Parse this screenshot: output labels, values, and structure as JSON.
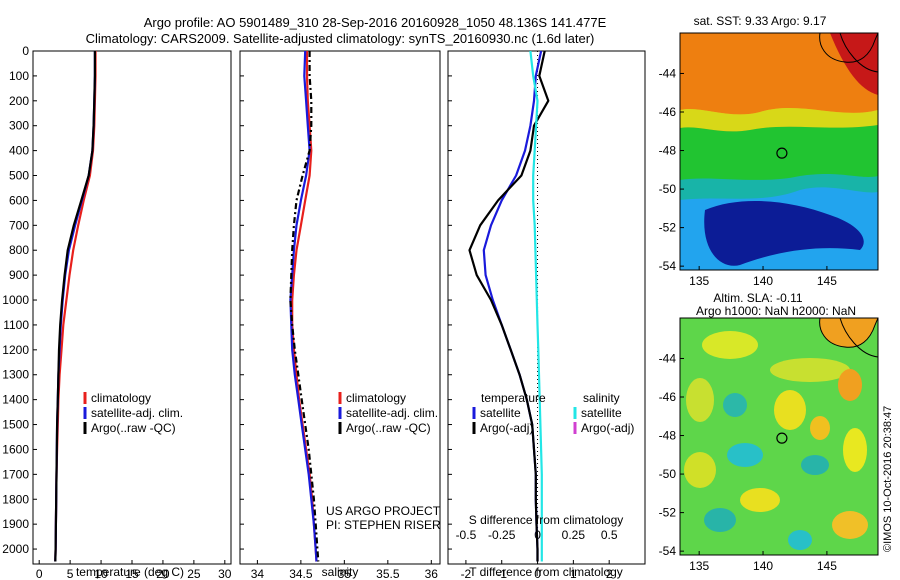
{
  "header": {
    "line1": "Argo profile: AO 5901489_310 28-Sep-2016 20160928_1050 48.136S 141.477E",
    "line2": "Climatology: CARS2009. Satellite-adjusted climatology: synTS_20160930.nc (1.6d later)"
  },
  "colors": {
    "climatology": "#e8201c",
    "satellite": "#1a1adb",
    "argo": "#000000",
    "satellite_salinity": "#22e6e6",
    "argo_salinity_adj": "#d040d0"
  },
  "chart_data": [
    {
      "type": "line",
      "xlabel": "temperature (deg C)",
      "ylabel": "",
      "xlim": [
        -1,
        31
      ],
      "ylim": [
        2060,
        0
      ],
      "xticks": [
        0,
        5,
        10,
        15,
        20,
        25,
        30
      ],
      "yticks": [
        0,
        100,
        200,
        300,
        400,
        500,
        600,
        700,
        800,
        900,
        1000,
        1100,
        1200,
        1300,
        1400,
        1500,
        1600,
        1700,
        1800,
        1900,
        2000
      ],
      "legend": [
        "climatology",
        "satellite-adj. clim.",
        "Argo(..raw -QC)"
      ],
      "series": [
        {
          "name": "climatology",
          "x": [
            9.1,
            9.1,
            9.0,
            8.9,
            8.7,
            8.2,
            7.2,
            6.3,
            5.5,
            4.9,
            4.4,
            3.9,
            3.6,
            3.3,
            3.1,
            3.0,
            2.9,
            2.8,
            2.75,
            2.7,
            2.65,
            2.6
          ],
          "y": [
            0,
            100,
            200,
            300,
            400,
            500,
            600,
            700,
            800,
            900,
            1000,
            1100,
            1200,
            1300,
            1400,
            1500,
            1600,
            1700,
            1800,
            1900,
            2000,
            2050
          ]
        },
        {
          "name": "satellite-adj. clim.",
          "x": [
            9.0,
            9.0,
            8.9,
            8.8,
            8.6,
            8.0,
            6.9,
            5.8,
            4.8,
            4.2,
            3.8,
            3.5,
            3.3,
            3.1,
            3.0,
            2.9,
            2.85,
            2.8,
            2.75,
            2.7,
            2.65,
            2.6
          ],
          "y": [
            0,
            100,
            200,
            300,
            400,
            500,
            600,
            700,
            800,
            900,
            1000,
            1100,
            1200,
            1300,
            1400,
            1500,
            1600,
            1700,
            1800,
            1900,
            2000,
            2050
          ]
        },
        {
          "name": "Argo(..raw -QC)",
          "x": [
            9.0,
            9.0,
            8.9,
            8.8,
            8.6,
            8.0,
            6.8,
            5.6,
            4.6,
            4.1,
            3.7,
            3.4,
            3.2,
            3.1,
            3.0,
            2.9,
            2.85,
            2.8,
            2.75,
            2.7,
            2.65,
            2.6
          ],
          "y": [
            0,
            100,
            200,
            300,
            400,
            500,
            600,
            700,
            800,
            900,
            1000,
            1100,
            1200,
            1300,
            1400,
            1500,
            1600,
            1700,
            1800,
            1900,
            2000,
            2050
          ]
        }
      ]
    },
    {
      "type": "line",
      "xlabel": "salinity",
      "ylabel": "",
      "xlim": [
        33.8,
        36.1
      ],
      "ylim": [
        2060,
        0
      ],
      "xticks": [
        34,
        34.5,
        35,
        35.5,
        36
      ],
      "legend": [
        "climatology",
        "satellite-adj. clim.",
        "Argo(..raw -QC)"
      ],
      "annotation": [
        "US ARGO PROJECT",
        "PI: STEPHEN RISER"
      ],
      "series": [
        {
          "name": "climatology",
          "x": [
            34.57,
            34.57,
            34.58,
            34.6,
            34.62,
            34.6,
            34.55,
            34.5,
            34.45,
            34.42,
            34.4,
            34.4,
            34.42,
            34.45,
            34.48,
            34.52,
            34.56,
            34.6,
            34.63,
            34.65,
            34.67,
            34.68
          ],
          "y": [
            0,
            100,
            200,
            300,
            400,
            500,
            600,
            700,
            800,
            900,
            1000,
            1100,
            1200,
            1300,
            1400,
            1500,
            1600,
            1700,
            1800,
            1900,
            2000,
            2050
          ]
        },
        {
          "name": "satellite-adj. clim.",
          "x": [
            34.55,
            34.54,
            34.56,
            34.58,
            34.6,
            34.56,
            34.5,
            34.45,
            34.42,
            34.4,
            34.38,
            34.39,
            34.4,
            34.43,
            34.47,
            34.51,
            34.55,
            34.59,
            34.62,
            34.65,
            34.67,
            34.68
          ],
          "y": [
            0,
            100,
            200,
            300,
            400,
            500,
            600,
            700,
            800,
            900,
            1000,
            1100,
            1200,
            1300,
            1400,
            1500,
            1600,
            1700,
            1800,
            1900,
            2000,
            2050
          ]
        },
        {
          "name": "Argo(..raw -QC)",
          "x": [
            34.6,
            34.6,
            34.62,
            34.62,
            34.6,
            34.52,
            34.45,
            34.42,
            34.4,
            34.39,
            34.38,
            34.4,
            34.43,
            34.47,
            34.51,
            34.55,
            34.59,
            34.62,
            34.65,
            34.67,
            34.69,
            34.7
          ],
          "y": [
            0,
            100,
            200,
            300,
            400,
            500,
            600,
            700,
            800,
            900,
            1000,
            1100,
            1200,
            1300,
            1400,
            1500,
            1600,
            1700,
            1800,
            1900,
            2000,
            2050
          ]
        }
      ]
    },
    {
      "type": "line",
      "xlabel": "T difference from climatology",
      "xlabel2": "S difference from climatology",
      "ylabel": "",
      "xlim": [
        -2.5,
        3
      ],
      "xlim_salinity": [
        -0.625,
        0.75
      ],
      "ylim": [
        2060,
        0
      ],
      "xticks": [
        -2,
        -1,
        0,
        1,
        2
      ],
      "xticks_salinity": [
        -0.5,
        -0.25,
        0,
        0.25,
        0.5
      ],
      "xticklabels_salinity": [
        "-0.5",
        "-0.25",
        "0",
        "0.25",
        "0.5"
      ],
      "legend_temperature_title": "temperature",
      "legend_temperature": [
        "satellite",
        "Argo(-adj)"
      ],
      "legend_salinity_title": "salinity",
      "legend_salinity": [
        "satellite",
        "Argo(-adj)"
      ],
      "series": [
        {
          "name": "satellite",
          "x": [
            0.1,
            -0.05,
            -0.1,
            -0.2,
            -0.35,
            -0.6,
            -1.0,
            -1.3,
            -1.5,
            -1.45,
            -1.25,
            -1.0,
            -0.75,
            -0.5,
            -0.3,
            -0.15,
            -0.1,
            -0.05,
            -0.05,
            -0.03,
            0.0,
            0.0
          ],
          "y": [
            0,
            100,
            200,
            300,
            400,
            500,
            600,
            700,
            800,
            900,
            1000,
            1100,
            1200,
            1300,
            1400,
            1500,
            1600,
            1700,
            1800,
            1900,
            2000,
            2050
          ]
        },
        {
          "name": "Argo(-adj)",
          "x": [
            0.2,
            0.05,
            0.3,
            -0.1,
            -0.2,
            -0.45,
            -1.1,
            -1.6,
            -1.9,
            -1.7,
            -1.3,
            -1.0,
            -0.75,
            -0.5,
            -0.3,
            -0.15,
            -0.1,
            -0.05,
            -0.05,
            -0.03,
            0.0,
            0.0
          ],
          "y": [
            0,
            100,
            200,
            300,
            400,
            500,
            600,
            700,
            800,
            900,
            1000,
            1100,
            1200,
            1300,
            1400,
            1500,
            1600,
            1700,
            1800,
            1900,
            2000,
            2050
          ]
        },
        {
          "name": "salinity satellite",
          "x": [
            -0.05,
            -0.03,
            0.0,
            -0.01,
            -0.02,
            -0.03,
            -0.03,
            -0.02,
            -0.015,
            -0.01,
            -0.005,
            0.0,
            0.005,
            0.01,
            0.015,
            0.02,
            0.025,
            0.03,
            0.03,
            0.03,
            0.03,
            0.03
          ],
          "y": [
            0,
            100,
            200,
            300,
            400,
            500,
            600,
            700,
            800,
            900,
            1000,
            1100,
            1200,
            1300,
            1400,
            1500,
            1600,
            1700,
            1800,
            1900,
            2000,
            2050
          ]
        }
      ]
    },
    {
      "type": "heatmap",
      "title": "sat. SST: 9.33 Argo: 9.17",
      "xlim": [
        133.5,
        149
      ],
      "ylim": [
        -54.2,
        -41.9
      ],
      "xticks": [
        135,
        140,
        145
      ],
      "yticks": [
        -44,
        -46,
        -48,
        -50,
        -52,
        -54
      ],
      "marker": {
        "x": 141.477,
        "y": -48.136
      }
    },
    {
      "type": "heatmap",
      "title": "Altim. SLA: -0.11",
      "subtitle": "Argo h1000: NaN h2000: NaN",
      "xlim": [
        133.5,
        149
      ],
      "ylim": [
        -54.2,
        -41.9
      ],
      "xticks": [
        135,
        140,
        145
      ],
      "yticks": [
        -44,
        -46,
        -48,
        -50,
        -52,
        -54
      ],
      "marker": {
        "x": 141.477,
        "y": -48.136
      }
    }
  ],
  "credit": "©IMOS 10-Oct-2016 20:38:47"
}
